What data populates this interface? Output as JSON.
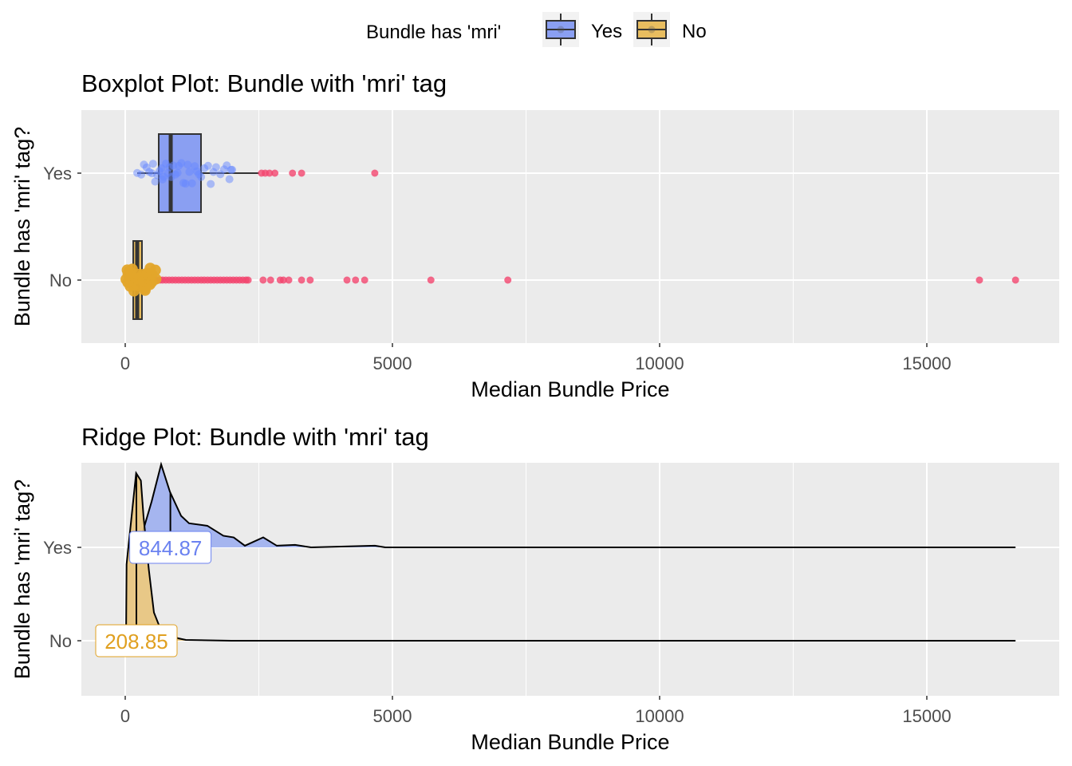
{
  "legend": {
    "title": "Bundle has 'mri'",
    "items": [
      {
        "label": "Yes",
        "color": "#8a9ff2"
      },
      {
        "label": "No",
        "color": "#e8bd5f"
      }
    ],
    "placement": "top"
  },
  "colors": {
    "panel_bg": "#ebebeb",
    "grid": "#ffffff",
    "outlier": "#f2456e",
    "yes_point": "#6688ff",
    "no_box_fill": "#e3a52a",
    "yes_ridge": "#9dafef",
    "no_ridge": "#e8c47c",
    "yes_label": "#6b82f0",
    "no_label": "#e0a020"
  },
  "chart_data": [
    {
      "type": "boxplot",
      "title": "Boxplot Plot: Bundle with 'mri' tag",
      "xlabel": "Median Bundle Price",
      "ylabel": "Bundle has 'mri' tag?",
      "xlim": [
        -821,
        17478
      ],
      "xticks": [
        0,
        5000,
        10000,
        15000
      ],
      "xtick_labels": [
        "0",
        "5000",
        "10000",
        "15000"
      ],
      "categories": [
        "Yes",
        "No"
      ],
      "grid": true,
      "boxes": [
        {
          "category": "Yes",
          "whisker_low": 224,
          "q1": 627,
          "median": 851,
          "q3": 1418,
          "whisker_high": 2507,
          "outliers": [
            2550,
            2620,
            2700,
            2800,
            3130,
            3300,
            4670
          ],
          "jitter_points": [
            224,
            300,
            350,
            400,
            450,
            500,
            520,
            560,
            600,
            640,
            680,
            700,
            720,
            760,
            800,
            830,
            860,
            900,
            940,
            980,
            1000,
            1050,
            1090,
            1130,
            1170,
            1200,
            1250,
            1300,
            1340,
            1380,
            1420,
            1480,
            1550,
            1600,
            1650,
            1700,
            1780,
            1850,
            1900,
            1950,
            1980,
            2000
          ]
        },
        {
          "category": "No",
          "whisker_low": 15,
          "q1": 150,
          "median": 224,
          "q3": 313,
          "whisker_high": 552,
          "outliers": [
            552,
            600,
            650,
            700,
            760,
            820,
            880,
            940,
            1000,
            1060,
            1120,
            1180,
            1240,
            1300,
            1360,
            1420,
            1480,
            1540,
            1600,
            1660,
            1720,
            1780,
            1840,
            1900,
            1960,
            2020,
            2080,
            2140,
            2200,
            2260,
            2300,
            2580,
            2720,
            2900,
            2960,
            3060,
            3300,
            3460,
            4150,
            4310,
            4480,
            5720,
            7160,
            15985,
            16660
          ],
          "jitter_points": [
            0,
            20,
            40,
            60,
            80,
            100,
            120,
            140,
            160,
            180,
            200,
            220,
            240,
            260,
            280,
            300,
            320,
            340,
            360,
            380,
            400,
            420,
            440,
            460,
            480,
            500,
            520,
            540
          ]
        }
      ]
    },
    {
      "type": "ridge",
      "title": "Ridge Plot: Bundle with 'mri' tag",
      "xlabel": "Median Bundle Price",
      "ylabel": "Bundle has 'mri' tag?",
      "xlim": [
        -821,
        17478
      ],
      "xticks": [
        0,
        5000,
        10000,
        15000
      ],
      "xtick_labels": [
        "0",
        "5000",
        "10000",
        "15000"
      ],
      "categories": [
        "Yes",
        "No"
      ],
      "grid": true,
      "series": [
        {
          "category": "Yes",
          "median": 844.87,
          "median_label": "844.87",
          "x": [
            224,
            343,
            493,
            672,
            836,
            1045,
            1194,
            1537,
            1836,
            2030,
            2239,
            2582,
            2836,
            3179,
            3478,
            4672,
            4866,
            16660
          ],
          "density": [
            0,
            0.22,
            0.55,
            1.0,
            0.67,
            0.38,
            0.29,
            0.26,
            0.14,
            0.12,
            0.02,
            0.12,
            0.02,
            0.03,
            0,
            0.02,
            0,
            0
          ]
        },
        {
          "category": "No",
          "median": 208.85,
          "median_label": "208.85",
          "x": [
            15,
            25,
            204,
            293,
            343,
            443,
            537,
            642,
            985,
            1134,
            1985,
            16660
          ],
          "density": [
            0,
            0.92,
            2.02,
            1.93,
            1.49,
            0.85,
            0.34,
            0.17,
            0.03,
            0.01,
            0,
            0
          ]
        }
      ]
    }
  ]
}
